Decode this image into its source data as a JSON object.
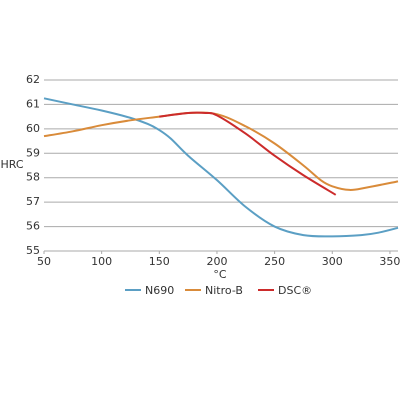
{
  "chart_data": {
    "type": "line",
    "x_label": "°C",
    "y_label": "HRC",
    "xlim": [
      50,
      357
    ],
    "ylim": [
      55,
      62
    ],
    "xticks": [
      50,
      100,
      150,
      200,
      250,
      300,
      350
    ],
    "yticks": [
      55,
      56,
      57,
      58,
      59,
      60,
      61,
      62
    ],
    "grid": true,
    "legend": "bottom",
    "series": [
      {
        "name": "N690",
        "color": "#5b9fc4",
        "x": [
          50,
          75,
          100,
          125,
          140,
          150,
          160,
          175,
          200,
          225,
          250,
          275,
          300,
          325,
          340,
          357
        ],
        "values": [
          61.25,
          61.0,
          60.75,
          60.45,
          60.2,
          59.95,
          59.6,
          58.9,
          57.9,
          56.8,
          56.0,
          55.65,
          55.6,
          55.65,
          55.75,
          55.95
        ]
      },
      {
        "name": "Nitro-B",
        "color": "#d98b3a",
        "x": [
          50,
          75,
          100,
          125,
          150,
          175,
          200,
          225,
          250,
          275,
          290,
          300,
          315,
          330,
          357
        ],
        "values": [
          59.7,
          59.9,
          60.15,
          60.35,
          60.5,
          60.65,
          60.6,
          60.1,
          59.4,
          58.5,
          57.9,
          57.65,
          57.5,
          57.6,
          57.85
        ]
      },
      {
        "name": "DSC®",
        "color": "#cc2b2b",
        "x": [
          150,
          175,
          190,
          200,
          225,
          250,
          275,
          303
        ],
        "values": [
          60.5,
          60.65,
          60.65,
          60.55,
          59.8,
          58.9,
          58.1,
          57.3
        ]
      }
    ]
  }
}
